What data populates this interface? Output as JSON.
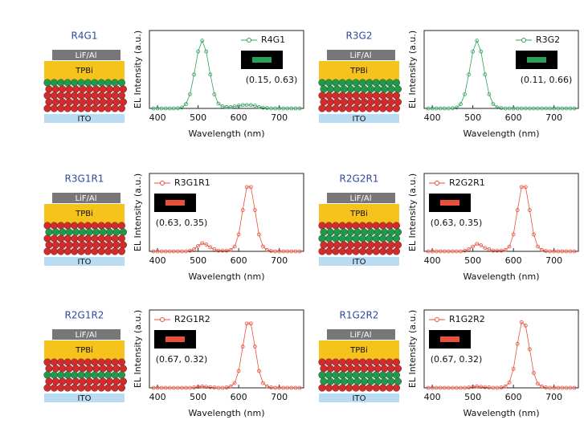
{
  "chart_data": [
    {
      "type": "line",
      "title": "R4G1",
      "layers": [
        "LiF/Al",
        "TPBi",
        "ITO"
      ],
      "xlabel": "Wavelength (nm)",
      "ylabel": "EL Intensity (a.u.)",
      "xlim": [
        380,
        760
      ],
      "xticks": [
        400,
        500,
        600,
        700
      ],
      "ylim": [
        0,
        1.15
      ],
      "legend": "upper right",
      "annotation": "(0.15, 0.63)",
      "x": [
        390,
        400,
        410,
        420,
        430,
        440,
        450,
        460,
        470,
        480,
        490,
        500,
        510,
        520,
        530,
        540,
        550,
        560,
        570,
        580,
        590,
        600,
        610,
        620,
        630,
        640,
        650,
        660,
        670,
        680,
        690,
        700,
        710,
        720,
        730,
        740,
        750
      ],
      "series": [
        {
          "name": "R4G1",
          "color": "#2ca05a",
          "values": [
            0,
            0,
            0,
            0,
            0,
            0,
            0.002,
            0.013,
            0.063,
            0.21,
            0.5,
            0.84,
            1,
            0.84,
            0.5,
            0.21,
            0.07,
            0.03,
            0.02,
            0.02,
            0.03,
            0.04,
            0.05,
            0.05,
            0.05,
            0.04,
            0.02,
            0.01,
            0.005,
            0,
            0,
            0,
            0,
            0,
            0,
            0,
            0
          ]
        }
      ]
    },
    {
      "type": "line",
      "title": "R3G2",
      "layers": [
        "LiF/Al",
        "TPBi",
        "ITO"
      ],
      "xlabel": "Wavelength (nm)",
      "ylabel": "EL Intensity (a.u.)",
      "xlim": [
        380,
        760
      ],
      "xticks": [
        400,
        500,
        600,
        700
      ],
      "ylim": [
        0,
        1.15
      ],
      "legend": "upper right",
      "annotation": "(0.11, 0.66)",
      "x": [
        390,
        400,
        410,
        420,
        430,
        440,
        450,
        460,
        470,
        480,
        490,
        500,
        510,
        520,
        530,
        540,
        550,
        560,
        570,
        580,
        590,
        600,
        610,
        620,
        630,
        640,
        650,
        660,
        670,
        680,
        690,
        700,
        710,
        720,
        730,
        740,
        750
      ],
      "series": [
        {
          "name": "R3G2",
          "color": "#2ca05a",
          "values": [
            0,
            0,
            0,
            0,
            0,
            0,
            0.002,
            0.013,
            0.063,
            0.21,
            0.5,
            0.84,
            1,
            0.84,
            0.5,
            0.21,
            0.065,
            0.015,
            0.005,
            0,
            0,
            0,
            0,
            0,
            0,
            0,
            0,
            0,
            0,
            0,
            0,
            0,
            0,
            0,
            0,
            0,
            0
          ]
        }
      ]
    },
    {
      "type": "line",
      "title": "R3G1R1",
      "layers": [
        "LiF/Al",
        "TPBi",
        "ITO"
      ],
      "xlabel": "Wavelength (nm)",
      "ylabel": "EL Intensity (a.u.)",
      "xlim": [
        380,
        760
      ],
      "xticks": [
        400,
        500,
        600,
        700
      ],
      "ylim": [
        0,
        1.15
      ],
      "legend": "upper left",
      "annotation": "(0.63, 0.35)",
      "x": [
        390,
        400,
        410,
        420,
        430,
        440,
        450,
        460,
        470,
        480,
        490,
        500,
        510,
        520,
        530,
        540,
        550,
        560,
        570,
        580,
        590,
        600,
        610,
        620,
        630,
        640,
        650,
        660,
        670,
        680,
        690,
        700,
        710,
        720,
        730,
        740,
        750
      ],
      "series": [
        {
          "name": "R3G1R1",
          "color": "#e8503a",
          "values": [
            0,
            0,
            0,
            0,
            0,
            0,
            0,
            0,
            0,
            0.01,
            0.03,
            0.08,
            0.12,
            0.1,
            0.06,
            0.03,
            0.01,
            0.01,
            0.01,
            0.02,
            0.07,
            0.25,
            0.61,
            0.95,
            0.95,
            0.61,
            0.25,
            0.07,
            0.02,
            0.005,
            0,
            0,
            0,
            0,
            0,
            0,
            0
          ]
        }
      ]
    },
    {
      "type": "line",
      "title": "R2G2R1",
      "layers": [
        "LiF/Al",
        "TPBi",
        "ITO"
      ],
      "xlabel": "Wavelength (nm)",
      "ylabel": "EL Intensity (a.u.)",
      "xlim": [
        380,
        760
      ],
      "xticks": [
        400,
        500,
        600,
        700
      ],
      "ylim": [
        0,
        1.15
      ],
      "legend": "upper left",
      "annotation": "(0.63, 0.35)",
      "x": [
        390,
        400,
        410,
        420,
        430,
        440,
        450,
        460,
        470,
        480,
        490,
        500,
        510,
        520,
        530,
        540,
        550,
        560,
        570,
        580,
        590,
        600,
        610,
        620,
        630,
        640,
        650,
        660,
        670,
        680,
        690,
        700,
        710,
        720,
        730,
        740,
        750
      ],
      "series": [
        {
          "name": "R2G2R1",
          "color": "#e8503a",
          "values": [
            0,
            0,
            0,
            0,
            0,
            0,
            0,
            0,
            0,
            0.01,
            0.03,
            0.07,
            0.11,
            0.09,
            0.05,
            0.03,
            0.01,
            0.01,
            0.01,
            0.02,
            0.07,
            0.25,
            0.61,
            0.95,
            0.95,
            0.61,
            0.25,
            0.07,
            0.02,
            0.005,
            0,
            0,
            0,
            0,
            0,
            0,
            0
          ]
        }
      ]
    },
    {
      "type": "line",
      "title": "R2G1R2",
      "layers": [
        "LiF/Al",
        "TPBi",
        "ITO"
      ],
      "xlabel": "Wavelength (nm)",
      "ylabel": "EL Intensity (a.u.)",
      "xlim": [
        380,
        760
      ],
      "xticks": [
        400,
        500,
        600,
        700
      ],
      "ylim": [
        0,
        1.15
      ],
      "legend": "upper left",
      "annotation": "(0.67, 0.32)",
      "x": [
        390,
        400,
        410,
        420,
        430,
        440,
        450,
        460,
        470,
        480,
        490,
        500,
        510,
        520,
        530,
        540,
        550,
        560,
        570,
        580,
        590,
        600,
        610,
        620,
        630,
        640,
        650,
        660,
        670,
        680,
        690,
        700,
        710,
        720,
        730,
        740,
        750
      ],
      "series": [
        {
          "name": "R2G1R2",
          "color": "#e8503a",
          "values": [
            0,
            0,
            0,
            0,
            0,
            0,
            0,
            0,
            0,
            0,
            0.005,
            0.015,
            0.02,
            0.015,
            0.01,
            0.005,
            0,
            0,
            0.005,
            0.02,
            0.07,
            0.25,
            0.61,
            0.95,
            0.95,
            0.61,
            0.25,
            0.07,
            0.02,
            0.005,
            0,
            0,
            0,
            0,
            0,
            0,
            0
          ]
        }
      ]
    },
    {
      "type": "line",
      "title": "R1G2R2",
      "layers": [
        "LiF/Al",
        "TPBi",
        "ITO"
      ],
      "xlabel": "Wavelength (nm)",
      "ylabel": "EL Intensity (a.u.)",
      "xlim": [
        380,
        760
      ],
      "xticks": [
        400,
        500,
        600,
        700
      ],
      "ylim": [
        0,
        1.15
      ],
      "legend": "upper left",
      "annotation": "(0.67, 0.32)",
      "x": [
        390,
        400,
        410,
        420,
        430,
        440,
        450,
        460,
        470,
        480,
        490,
        500,
        510,
        520,
        530,
        540,
        550,
        560,
        570,
        580,
        590,
        600,
        610,
        620,
        630,
        640,
        650,
        660,
        670,
        680,
        690,
        700,
        710,
        720,
        730,
        740,
        750
      ],
      "series": [
        {
          "name": "R1G2R2",
          "color": "#e8503a",
          "values": [
            0,
            0,
            0,
            0,
            0,
            0,
            0,
            0,
            0,
            0,
            0.005,
            0.015,
            0.02,
            0.015,
            0.01,
            0.005,
            0,
            0,
            0.005,
            0.02,
            0.08,
            0.28,
            0.65,
            0.97,
            0.92,
            0.57,
            0.22,
            0.06,
            0.02,
            0.005,
            0,
            0,
            0,
            0,
            0,
            0,
            0
          ]
        }
      ]
    }
  ]
}
